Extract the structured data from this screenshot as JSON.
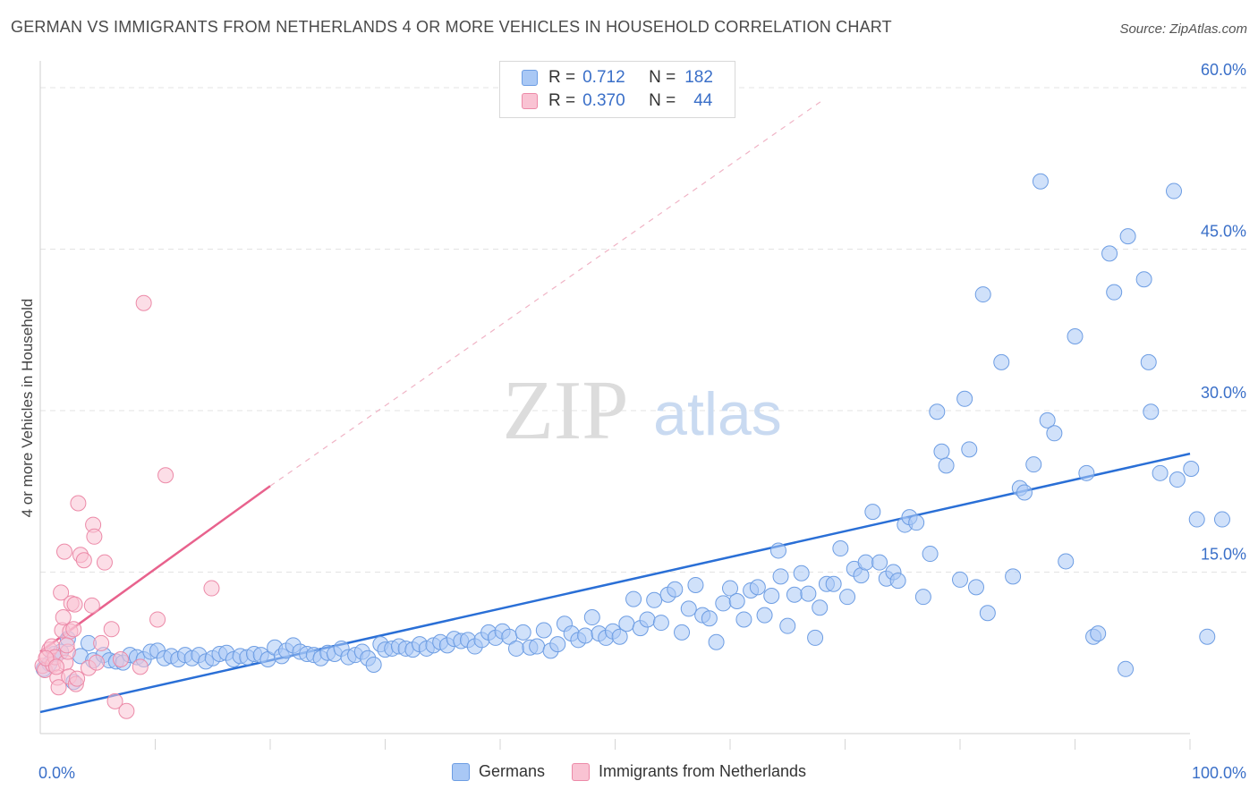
{
  "header": {
    "title": "GERMAN VS IMMIGRANTS FROM NETHERLANDS 4 OR MORE VEHICLES IN HOUSEHOLD CORRELATION CHART",
    "source": "Source: ZipAtlas.com"
  },
  "watermark": {
    "zip": "ZIP",
    "atlas": "atlas"
  },
  "legend": {
    "rows": [
      {
        "r_label": "R =",
        "r_value": "0.712",
        "n_label": "N =",
        "n_value": "182",
        "color": "#a9c8f5",
        "border": "#6d9de3"
      },
      {
        "r_label": "R =",
        "r_value": "0.370",
        "n_label": "N =",
        "n_value": "44",
        "color": "#f9c3d3",
        "border": "#ec8aa8"
      }
    ]
  },
  "bottom_legend": {
    "germans": "Germans",
    "netherlands": "Immigrants from Netherlands"
  },
  "colors": {
    "blue_fill": "#a9c8f5",
    "blue_stroke": "#6d9de3",
    "blue_line": "#2a6fd6",
    "pink_fill": "#f9c3d3",
    "pink_stroke": "#ec8aa8",
    "pink_line": "#e8628d",
    "tick_text": "#3a6fc8",
    "grid": "#e3e3e3"
  },
  "chart_data": {
    "type": "scatter",
    "title": "GERMAN VS IMMIGRANTS FROM NETHERLANDS 4 OR MORE VEHICLES IN HOUSEHOLD CORRELATION CHART",
    "xlabel": "",
    "ylabel": "4 or more Vehicles in Household",
    "xlim": [
      0,
      100
    ],
    "ylim": [
      0,
      61.5
    ],
    "x_tick_labels": [
      "0.0%",
      "100.0%"
    ],
    "y_ticks": [
      15,
      30,
      45,
      60
    ],
    "y_tick_labels": [
      "15.0%",
      "30.0%",
      "45.0%",
      "60.0%"
    ],
    "grid": true,
    "series": [
      {
        "name": "Germans",
        "r": 0.712,
        "n": 182,
        "trend": {
          "x0": 0,
          "y0": 2.0,
          "x1": 100,
          "y1": 26.0
        },
        "points": [
          [
            0.3,
            6.0
          ],
          [
            0.8,
            6.5
          ],
          [
            1.2,
            7.4
          ],
          [
            1.8,
            7.6
          ],
          [
            2.4,
            8.8
          ],
          [
            2.9,
            4.8
          ],
          [
            3.5,
            7.2
          ],
          [
            4.2,
            8.4
          ],
          [
            4.6,
            6.8
          ],
          [
            5.5,
            7.3
          ],
          [
            6.0,
            6.8
          ],
          [
            6.6,
            6.7
          ],
          [
            7.2,
            6.6
          ],
          [
            7.8,
            7.3
          ],
          [
            8.4,
            7.1
          ],
          [
            9.0,
            6.9
          ],
          [
            9.6,
            7.6
          ],
          [
            10.2,
            7.7
          ],
          [
            10.8,
            7.0
          ],
          [
            11.4,
            7.2
          ],
          [
            12.0,
            6.9
          ],
          [
            12.6,
            7.3
          ],
          [
            13.2,
            7.0
          ],
          [
            13.8,
            7.3
          ],
          [
            14.4,
            6.7
          ],
          [
            15.0,
            7.0
          ],
          [
            15.6,
            7.4
          ],
          [
            16.2,
            7.5
          ],
          [
            16.8,
            6.9
          ],
          [
            17.4,
            7.2
          ],
          [
            18.0,
            7.1
          ],
          [
            18.6,
            7.4
          ],
          [
            19.2,
            7.3
          ],
          [
            19.8,
            6.9
          ],
          [
            20.4,
            8.0
          ],
          [
            21.0,
            7.2
          ],
          [
            21.4,
            7.7
          ],
          [
            22.0,
            8.2
          ],
          [
            22.6,
            7.6
          ],
          [
            23.2,
            7.4
          ],
          [
            23.8,
            7.3
          ],
          [
            24.4,
            7.0
          ],
          [
            25.0,
            7.5
          ],
          [
            25.6,
            7.4
          ],
          [
            26.2,
            7.9
          ],
          [
            26.8,
            7.1
          ],
          [
            27.4,
            7.3
          ],
          [
            28.0,
            7.6
          ],
          [
            28.5,
            7.0
          ],
          [
            29.0,
            6.4
          ],
          [
            29.6,
            8.3
          ],
          [
            30.0,
            7.8
          ],
          [
            30.6,
            7.9
          ],
          [
            31.2,
            8.1
          ],
          [
            31.8,
            7.9
          ],
          [
            32.4,
            7.8
          ],
          [
            33.0,
            8.3
          ],
          [
            33.6,
            7.9
          ],
          [
            34.2,
            8.2
          ],
          [
            34.8,
            8.5
          ],
          [
            35.4,
            8.2
          ],
          [
            36.0,
            8.8
          ],
          [
            36.6,
            8.6
          ],
          [
            37.2,
            8.7
          ],
          [
            37.8,
            8.1
          ],
          [
            38.4,
            8.7
          ],
          [
            39.0,
            9.4
          ],
          [
            39.6,
            8.9
          ],
          [
            40.2,
            9.5
          ],
          [
            40.8,
            9.0
          ],
          [
            41.4,
            7.9
          ],
          [
            42.0,
            9.4
          ],
          [
            42.6,
            8.0
          ],
          [
            43.2,
            8.1
          ],
          [
            43.8,
            9.6
          ],
          [
            44.4,
            7.7
          ],
          [
            45.0,
            8.3
          ],
          [
            45.6,
            10.2
          ],
          [
            46.2,
            9.3
          ],
          [
            46.8,
            8.7
          ],
          [
            47.4,
            9.1
          ],
          [
            48.0,
            10.8
          ],
          [
            48.6,
            9.3
          ],
          [
            49.2,
            8.9
          ],
          [
            49.8,
            9.5
          ],
          [
            50.4,
            9.0
          ],
          [
            51.0,
            10.2
          ],
          [
            51.6,
            12.5
          ],
          [
            52.2,
            9.8
          ],
          [
            52.8,
            10.6
          ],
          [
            53.4,
            12.4
          ],
          [
            54.0,
            10.3
          ],
          [
            54.6,
            12.9
          ],
          [
            55.2,
            13.4
          ],
          [
            55.8,
            9.4
          ],
          [
            56.4,
            11.6
          ],
          [
            57.0,
            13.8
          ],
          [
            57.6,
            11.0
          ],
          [
            58.2,
            10.7
          ],
          [
            58.8,
            8.5
          ],
          [
            59.4,
            12.1
          ],
          [
            60.0,
            13.5
          ],
          [
            60.6,
            12.3
          ],
          [
            61.2,
            10.6
          ],
          [
            61.8,
            13.3
          ],
          [
            62.4,
            13.6
          ],
          [
            63.0,
            11.0
          ],
          [
            63.6,
            12.8
          ],
          [
            64.2,
            17.0
          ],
          [
            64.4,
            14.6
          ],
          [
            65.0,
            10.0
          ],
          [
            65.6,
            12.9
          ],
          [
            66.2,
            14.9
          ],
          [
            66.8,
            13.0
          ],
          [
            67.4,
            8.9
          ],
          [
            67.8,
            11.7
          ],
          [
            68.4,
            13.9
          ],
          [
            69.0,
            13.9
          ],
          [
            69.6,
            17.2
          ],
          [
            70.2,
            12.7
          ],
          [
            70.8,
            15.3
          ],
          [
            71.4,
            14.7
          ],
          [
            71.8,
            15.9
          ],
          [
            72.4,
            20.6
          ],
          [
            73.0,
            15.9
          ],
          [
            73.6,
            14.4
          ],
          [
            74.2,
            15.0
          ],
          [
            74.6,
            14.2
          ],
          [
            75.2,
            19.4
          ],
          [
            75.6,
            20.1
          ],
          [
            76.2,
            19.6
          ],
          [
            76.8,
            12.7
          ],
          [
            77.4,
            16.7
          ],
          [
            78.0,
            29.9
          ],
          [
            78.4,
            26.2
          ],
          [
            78.8,
            24.9
          ],
          [
            80.0,
            14.3
          ],
          [
            80.4,
            31.1
          ],
          [
            80.8,
            26.4
          ],
          [
            81.4,
            13.6
          ],
          [
            82.0,
            40.8
          ],
          [
            82.4,
            11.2
          ],
          [
            83.6,
            34.5
          ],
          [
            84.6,
            14.6
          ],
          [
            85.2,
            22.8
          ],
          [
            85.6,
            22.4
          ],
          [
            86.4,
            25.0
          ],
          [
            87.0,
            51.3
          ],
          [
            87.6,
            29.1
          ],
          [
            88.2,
            27.9
          ],
          [
            89.2,
            16.0
          ],
          [
            90.0,
            36.9
          ],
          [
            91.0,
            24.2
          ],
          [
            91.6,
            9.0
          ],
          [
            92.0,
            9.3
          ],
          [
            93.0,
            44.6
          ],
          [
            93.4,
            41.0
          ],
          [
            94.4,
            6.0
          ],
          [
            94.6,
            46.2
          ],
          [
            96.0,
            42.2
          ],
          [
            96.4,
            34.5
          ],
          [
            96.6,
            29.9
          ],
          [
            97.4,
            24.2
          ],
          [
            98.6,
            50.4
          ],
          [
            98.9,
            23.6
          ],
          [
            100.1,
            24.6
          ],
          [
            100.6,
            19.9
          ],
          [
            101.5,
            9.0
          ],
          [
            102.8,
            19.9
          ]
        ]
      },
      {
        "name": "Immigrants from Netherlands",
        "r": 0.37,
        "n": 44,
        "trend": {
          "x0": 0,
          "y0": 7.6,
          "x1": 20,
          "y1": 23.0
        },
        "trend_extension": {
          "x0": 20,
          "y0": 23.0,
          "x1": 68,
          "y1": 58.8
        },
        "points": [
          [
            0.2,
            6.3
          ],
          [
            0.4,
            5.9
          ],
          [
            0.6,
            7.2
          ],
          [
            0.8,
            7.8
          ],
          [
            1.0,
            8.1
          ],
          [
            1.1,
            6.4
          ],
          [
            1.3,
            7.1
          ],
          [
            1.5,
            5.2
          ],
          [
            1.6,
            4.3
          ],
          [
            1.8,
            13.1
          ],
          [
            1.9,
            9.6
          ],
          [
            2.0,
            10.8
          ],
          [
            2.1,
            16.9
          ],
          [
            2.2,
            6.6
          ],
          [
            2.4,
            7.6
          ],
          [
            2.5,
            5.3
          ],
          [
            2.6,
            9.5
          ],
          [
            2.7,
            12.1
          ],
          [
            2.9,
            9.7
          ],
          [
            3.0,
            12.0
          ],
          [
            3.1,
            4.6
          ],
          [
            3.2,
            5.1
          ],
          [
            3.3,
            21.4
          ],
          [
            3.5,
            16.6
          ],
          [
            3.8,
            16.1
          ],
          [
            4.2,
            6.1
          ],
          [
            4.5,
            11.9
          ],
          [
            4.6,
            19.4
          ],
          [
            4.7,
            18.3
          ],
          [
            4.9,
            6.6
          ],
          [
            5.3,
            8.4
          ],
          [
            5.6,
            15.9
          ],
          [
            6.2,
            9.7
          ],
          [
            6.5,
            3.0
          ],
          [
            7.0,
            6.9
          ],
          [
            7.5,
            2.1
          ],
          [
            8.7,
            6.2
          ],
          [
            9.0,
            40.0
          ],
          [
            10.2,
            10.6
          ],
          [
            10.9,
            24.0
          ],
          [
            14.9,
            13.5
          ],
          [
            0.5,
            7.0
          ],
          [
            1.4,
            6.2
          ],
          [
            2.3,
            8.2
          ]
        ]
      }
    ]
  }
}
